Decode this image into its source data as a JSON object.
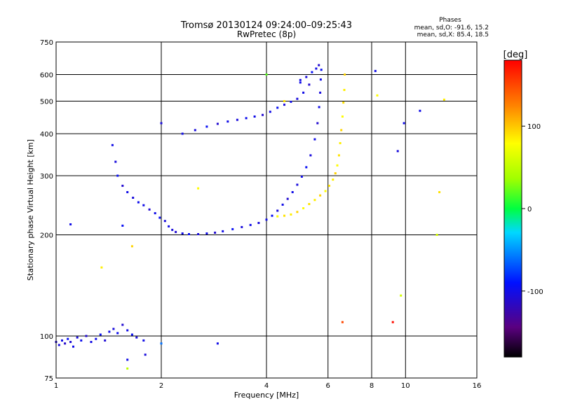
{
  "chart_data": {
    "type": "scatter",
    "title": "Tromsø 20130124 09:24:00–09:25:43",
    "subtitle": "RwPretec (8p)",
    "xlabel": "Frequency [MHz]",
    "ylabel": "Stationary phase Virtual Height [km]",
    "x_scale": "log",
    "y_scale": "log",
    "xlim": [
      1,
      16
    ],
    "ylim": [
      75,
      750
    ],
    "grid": true,
    "x_ticks": [
      1,
      2,
      4,
      6,
      8,
      10,
      16
    ],
    "x_tick_labels": [
      "1",
      "2",
      "4",
      "6",
      "8",
      "10",
      "16"
    ],
    "y_ticks": [
      75,
      100,
      200,
      300,
      400,
      500,
      600,
      750
    ],
    "y_tick_labels": [
      "75",
      "100",
      "200",
      "300",
      "400",
      "500",
      "600",
      "750"
    ],
    "stats": {
      "heading": "Phases",
      "o_line": "mean, sd,O: -91.6, 15.2",
      "x_line": "mean, sd,X:  85.4, 18.5"
    },
    "colorbar": {
      "unit_label": "[deg]",
      "range": [
        -180,
        180
      ],
      "tick_values": [
        100,
        0,
        -100
      ],
      "tick_labels": [
        "100",
        "0",
        "-100"
      ]
    },
    "series": [
      {
        "mode": "O",
        "phase_mean": -91.6,
        "points": [
          [
            1.0,
            96,
            -110
          ],
          [
            1.02,
            94,
            -105
          ],
          [
            1.04,
            97,
            -100
          ],
          [
            1.06,
            95,
            -112
          ],
          [
            1.08,
            98,
            -95
          ],
          [
            1.1,
            96,
            -108
          ],
          [
            1.12,
            93,
            -100
          ],
          [
            1.15,
            99,
            -105
          ],
          [
            1.18,
            97,
            -98
          ],
          [
            1.22,
            100,
            -110
          ],
          [
            1.26,
            96,
            -102
          ],
          [
            1.3,
            98,
            -100
          ],
          [
            1.34,
            101,
            -95
          ],
          [
            1.38,
            97,
            -108
          ],
          [
            1.42,
            103,
            -100
          ],
          [
            1.46,
            105,
            -105
          ],
          [
            1.5,
            102,
            -98
          ],
          [
            1.55,
            108,
            -110
          ],
          [
            1.6,
            104,
            -100
          ],
          [
            1.65,
            101,
            -95
          ],
          [
            1.7,
            99,
            -105
          ],
          [
            1.78,
            97,
            -100
          ],
          [
            1.45,
            370,
            -100
          ],
          [
            1.48,
            330,
            -105
          ],
          [
            1.5,
            300,
            -95
          ],
          [
            1.55,
            280,
            -110
          ],
          [
            1.6,
            268,
            -100
          ],
          [
            1.66,
            258,
            -105
          ],
          [
            1.72,
            250,
            -98
          ],
          [
            1.78,
            245,
            -100
          ],
          [
            1.85,
            238,
            -110
          ],
          [
            1.92,
            232,
            -100
          ],
          [
            1.98,
            225,
            -95
          ],
          [
            2.05,
            220,
            -105
          ],
          [
            2.1,
            212,
            -100
          ],
          [
            2.15,
            207,
            -105
          ],
          [
            2.2,
            204,
            -110
          ],
          [
            2.3,
            202,
            -100
          ],
          [
            2.4,
            201,
            -95
          ],
          [
            2.55,
            201,
            -105
          ],
          [
            2.7,
            202,
            -100
          ],
          [
            2.85,
            203,
            -110
          ],
          [
            3.0,
            205,
            -100
          ],
          [
            3.2,
            208,
            -95
          ],
          [
            3.4,
            211,
            -105
          ],
          [
            3.6,
            214,
            -100
          ],
          [
            3.8,
            217,
            -105
          ],
          [
            4.0,
            222,
            -100
          ],
          [
            4.15,
            228,
            -95
          ],
          [
            4.3,
            236,
            -105
          ],
          [
            4.45,
            246,
            -100
          ],
          [
            4.6,
            256,
            -110
          ],
          [
            4.75,
            268,
            -100
          ],
          [
            4.9,
            282,
            -105
          ],
          [
            5.05,
            298,
            -100
          ],
          [
            5.2,
            318,
            -95
          ],
          [
            5.35,
            345,
            -105
          ],
          [
            5.5,
            385,
            -100
          ],
          [
            5.6,
            430,
            -110
          ],
          [
            5.66,
            480,
            -100
          ],
          [
            5.7,
            530,
            -105
          ],
          [
            5.72,
            580,
            -100
          ],
          [
            5.74,
            620,
            -95
          ],
          [
            2.3,
            400,
            -100
          ],
          [
            2.5,
            410,
            -105
          ],
          [
            2.7,
            420,
            -95
          ],
          [
            2.9,
            428,
            -110
          ],
          [
            3.1,
            435,
            -100
          ],
          [
            3.3,
            440,
            -105
          ],
          [
            3.5,
            445,
            -98
          ],
          [
            3.7,
            450,
            -100
          ],
          [
            3.9,
            455,
            -110
          ],
          [
            4.1,
            465,
            -100
          ],
          [
            4.3,
            478,
            -95
          ],
          [
            4.5,
            488,
            -105
          ],
          [
            4.7,
            498,
            -100
          ],
          [
            4.9,
            508,
            -105
          ],
          [
            5.1,
            530,
            -100
          ],
          [
            5.3,
            560,
            -110
          ],
          [
            5.0,
            568,
            -100
          ],
          [
            5.2,
            590,
            -105
          ],
          [
            5.4,
            610,
            -95
          ],
          [
            5.55,
            625,
            -100
          ],
          [
            5.65,
            640,
            -110
          ],
          [
            1.1,
            215,
            -100
          ],
          [
            1.55,
            213,
            -95
          ],
          [
            2.0,
            430,
            -105
          ],
          [
            5.0,
            578,
            -100
          ]
        ]
      },
      {
        "mode": "X",
        "phase_mean": 85.4,
        "points": [
          [
            4.3,
            227,
            80
          ],
          [
            4.5,
            228,
            90
          ],
          [
            4.7,
            230,
            85
          ],
          [
            4.9,
            234,
            95
          ],
          [
            5.1,
            240,
            80
          ],
          [
            5.3,
            247,
            90
          ],
          [
            5.5,
            254,
            85
          ],
          [
            5.7,
            262,
            95
          ],
          [
            5.9,
            270,
            80
          ],
          [
            6.05,
            280,
            90
          ],
          [
            6.2,
            292,
            85
          ],
          [
            6.3,
            305,
            95
          ],
          [
            6.38,
            322,
            80
          ],
          [
            6.45,
            345,
            90
          ],
          [
            6.5,
            375,
            85
          ],
          [
            6.55,
            410,
            95
          ],
          [
            6.6,
            450,
            80
          ],
          [
            6.64,
            495,
            90
          ],
          [
            6.68,
            540,
            85
          ],
          [
            6.7,
            600,
            95
          ],
          [
            8.3,
            520,
            80
          ],
          [
            12.5,
            268,
            90
          ],
          [
            1.35,
            160,
            85
          ],
          [
            1.65,
            185,
            95
          ],
          [
            2.55,
            275,
            80
          ],
          [
            4.5,
            500,
            90
          ]
        ]
      },
      {
        "mode": "scattered",
        "points": [
          [
            1.6,
            85,
            -100
          ],
          [
            1.8,
            88,
            -105
          ],
          [
            2.9,
            95,
            -100
          ],
          [
            9.2,
            110,
            175
          ],
          [
            8.2,
            615,
            -100
          ],
          [
            9.9,
            430,
            -100
          ],
          [
            11.0,
            468,
            -100
          ],
          [
            9.5,
            355,
            -105
          ],
          [
            6.6,
            110,
            150
          ],
          [
            9.7,
            132,
            60
          ],
          [
            12.9,
            505,
            85
          ],
          [
            12.3,
            200,
            60
          ],
          [
            4.0,
            600,
            20
          ],
          [
            1.6,
            80,
            50
          ],
          [
            2.0,
            95,
            -60
          ]
        ]
      }
    ]
  }
}
